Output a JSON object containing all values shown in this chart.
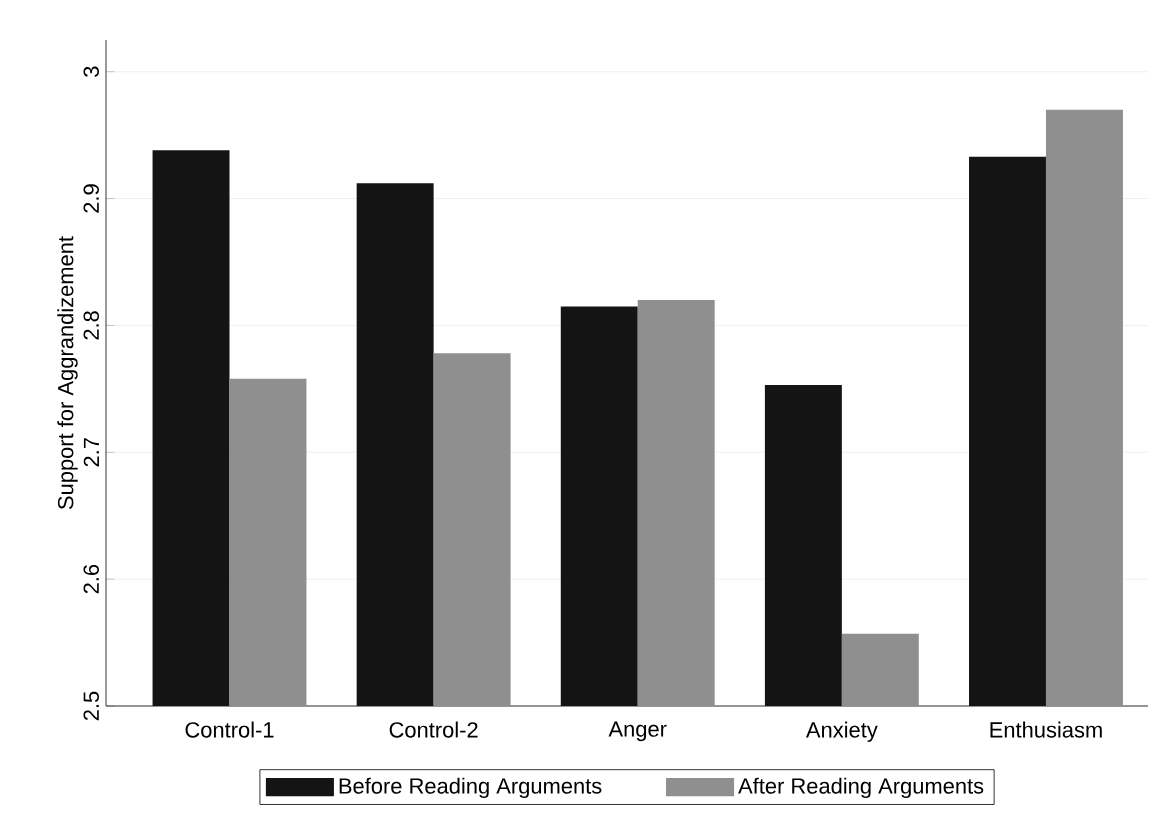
{
  "chart_data": {
    "type": "bar",
    "ylabel": "Support for Aggrandizement",
    "categories": [
      "Control-1",
      "Control-2",
      "Anger",
      "Anxiety",
      "Enthusiasm"
    ],
    "series": [
      {
        "name": "Before Reading Arguments",
        "color": "#141414",
        "values": [
          2.938,
          2.912,
          2.815,
          2.753,
          2.933
        ]
      },
      {
        "name": "After Reading Arguments",
        "color": "#8f8f8f",
        "values": [
          2.758,
          2.778,
          2.82,
          2.557,
          2.97
        ]
      }
    ],
    "ylim": [
      2.5,
      3.025
    ],
    "yticks": [
      2.5,
      2.6,
      2.7,
      2.8,
      2.9,
      3
    ],
    "grid": "y",
    "legend": "bottom"
  }
}
